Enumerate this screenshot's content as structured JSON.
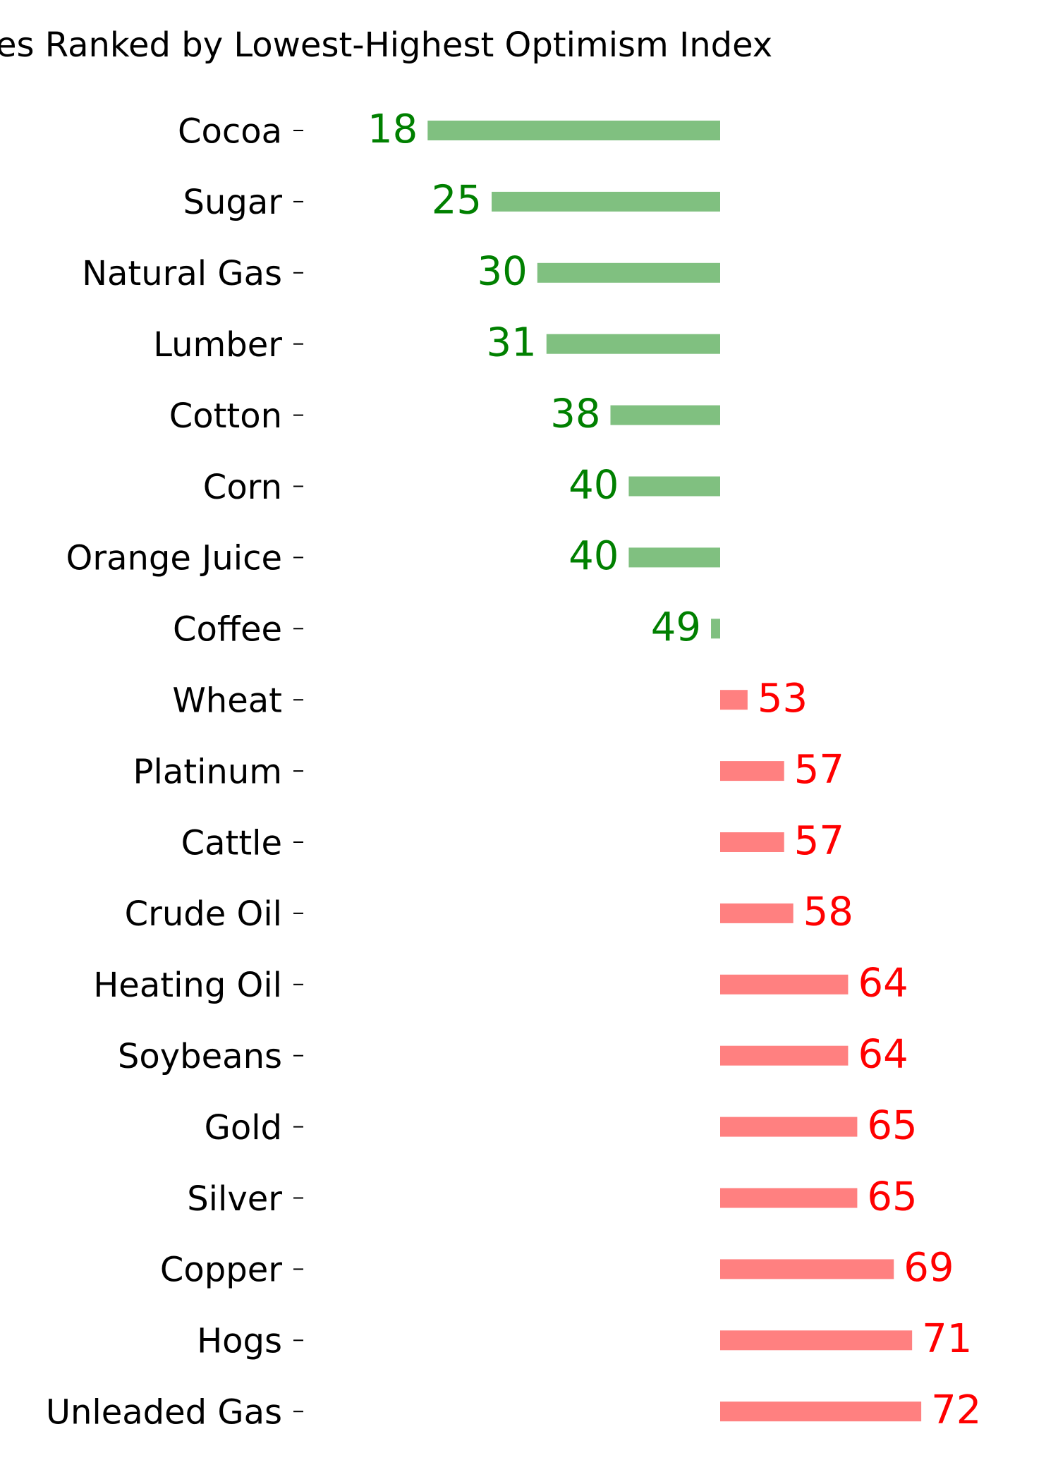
{
  "chart_data": {
    "type": "bar",
    "orientation": "horizontal",
    "title": "es Ranked by Lowest-Highest Optimism Index",
    "xlabel": "",
    "ylabel": "",
    "center": 50,
    "grid": false,
    "legend": "none",
    "categories": [
      "Cocoa",
      "Sugar",
      "Natural Gas",
      "Lumber",
      "Cotton",
      "Corn",
      "Orange Juice",
      "Coffee",
      "Wheat",
      "Platinum",
      "Cattle",
      "Crude Oil",
      "Heating Oil",
      "Soybeans",
      "Gold",
      "Silver",
      "Copper",
      "Hogs",
      "Unleaded Gas"
    ],
    "values": [
      18,
      25,
      30,
      31,
      38,
      40,
      40,
      49,
      53,
      57,
      57,
      58,
      64,
      64,
      65,
      65,
      69,
      71,
      72
    ],
    "colors": {
      "below_center_bar": "#80c080",
      "below_center_label": "#008000",
      "above_center_bar": "#ff8080",
      "above_center_label": "#ff0000",
      "category_text": "#000000"
    }
  }
}
